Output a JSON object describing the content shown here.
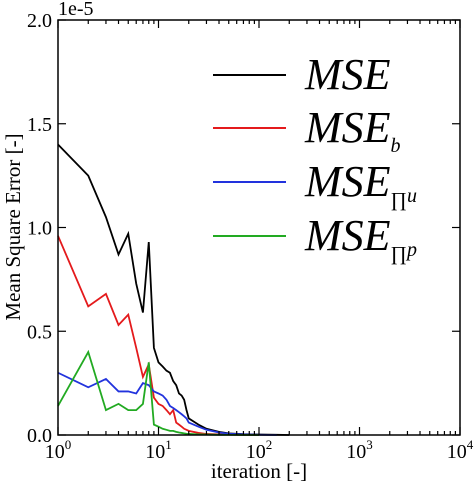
{
  "chart_data": {
    "type": "line",
    "x_scale": "log",
    "xlabel": "iteration [-]",
    "ylabel": "Mean Square Error [-]",
    "offset_label": "1e-5",
    "xlim": [
      1,
      10000
    ],
    "ylim": [
      0,
      2.0
    ],
    "x_ticks": [
      {
        "value": 1,
        "base": "10",
        "exp": "0"
      },
      {
        "value": 10,
        "base": "10",
        "exp": "1"
      },
      {
        "value": 100,
        "base": "10",
        "exp": "2"
      },
      {
        "value": 1000,
        "base": "10",
        "exp": "3"
      },
      {
        "value": 10000,
        "base": "10",
        "exp": "4"
      }
    ],
    "y_ticks": [
      {
        "value": 0.0,
        "label": "0.0"
      },
      {
        "value": 0.5,
        "label": "0.5"
      },
      {
        "value": 1.0,
        "label": "1.0"
      },
      {
        "value": 1.5,
        "label": "1.5"
      },
      {
        "value": 2.0,
        "label": "2.0"
      }
    ],
    "grid": false,
    "legend_position": "top-right",
    "series": [
      {
        "name": "MSE",
        "subscript": "",
        "color": "#000000",
        "x": [
          1,
          2,
          3,
          4,
          5,
          6,
          7,
          8,
          9,
          10,
          11,
          12,
          13,
          14,
          15,
          16,
          17,
          18,
          19,
          20,
          25,
          30,
          40,
          50,
          70,
          100,
          150,
          200
        ],
        "y": [
          1.4,
          1.25,
          1.05,
          0.87,
          0.97,
          0.73,
          0.59,
          0.93,
          0.42,
          0.35,
          0.33,
          0.31,
          0.3,
          0.26,
          0.24,
          0.2,
          0.19,
          0.17,
          0.12,
          0.08,
          0.05,
          0.03,
          0.015,
          0.008,
          0.004,
          0.002,
          0.001,
          0.0
        ]
      },
      {
        "name": "MSE",
        "subscript": "b",
        "color": "#e41a1c",
        "x": [
          1,
          2,
          3,
          4,
          5,
          6,
          7,
          8,
          9,
          10,
          11,
          12,
          13,
          14,
          15,
          16,
          17,
          18,
          19,
          20,
          25,
          30,
          40,
          50,
          70,
          100
        ],
        "y": [
          0.96,
          0.62,
          0.68,
          0.53,
          0.58,
          0.42,
          0.28,
          0.34,
          0.18,
          0.15,
          0.14,
          0.12,
          0.1,
          0.12,
          0.06,
          0.05,
          0.04,
          0.03,
          0.025,
          0.02,
          0.01,
          0.005,
          0.003,
          0.002,
          0.001,
          0.0
        ]
      },
      {
        "name": "MSE",
        "subscript": "u",
        "prod": "∏",
        "color": "#2233dd",
        "x": [
          1,
          2,
          3,
          4,
          5,
          6,
          7,
          8,
          9,
          10,
          11,
          12,
          13,
          14,
          15,
          16,
          17,
          18,
          19,
          20,
          25,
          30,
          40,
          50,
          70,
          100,
          150
        ],
        "y": [
          0.3,
          0.23,
          0.27,
          0.21,
          0.21,
          0.2,
          0.25,
          0.24,
          0.21,
          0.2,
          0.19,
          0.17,
          0.14,
          0.13,
          0.12,
          0.11,
          0.1,
          0.09,
          0.08,
          0.06,
          0.04,
          0.025,
          0.012,
          0.006,
          0.003,
          0.001,
          0.0
        ]
      },
      {
        "name": "MSE",
        "subscript": "p",
        "prod": "∏",
        "color": "#22aa22",
        "x": [
          1,
          2,
          3,
          4,
          5,
          6,
          7,
          8,
          9,
          10,
          11,
          12,
          13,
          14,
          15,
          16,
          17,
          18,
          19,
          20,
          25,
          30,
          40,
          50,
          70,
          100
        ],
        "y": [
          0.14,
          0.4,
          0.12,
          0.15,
          0.12,
          0.12,
          0.15,
          0.35,
          0.05,
          0.04,
          0.03,
          0.025,
          0.02,
          0.02,
          0.015,
          0.012,
          0.01,
          0.008,
          0.006,
          0.005,
          0.003,
          0.002,
          0.001,
          0.0005,
          0.0002,
          0.0
        ]
      }
    ]
  }
}
